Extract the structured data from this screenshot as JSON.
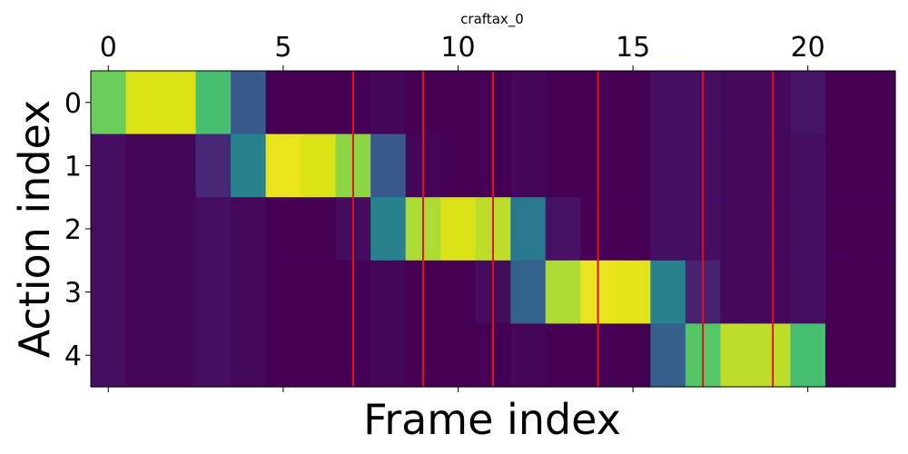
{
  "chart_data": {
    "type": "heatmap",
    "title": "craftax_0",
    "xlabel": "Frame index",
    "ylabel": "Action index",
    "x_ticks": [
      0,
      5,
      10,
      15,
      20
    ],
    "y_ticks": [
      0,
      1,
      2,
      3,
      4
    ],
    "x_range": [
      -0.5,
      22.5
    ],
    "y_range": [
      4.5,
      -0.5
    ],
    "x_tick_position": "top",
    "colormap": "viridis",
    "num_frames": 23,
    "num_actions": 5,
    "values": [
      [
        0.85,
        0.95,
        0.95,
        0.8,
        0.35,
        0.0,
        0.0,
        0.0,
        0.02,
        0.0,
        0.0,
        0.0,
        0.02,
        0.0,
        0.0,
        0.0,
        0.05,
        0.05,
        0.03,
        0.03,
        0.07,
        0.0,
        0.0
      ],
      [
        0.05,
        0.02,
        0.02,
        0.15,
        0.55,
        0.97,
        0.95,
        0.9,
        0.35,
        0.02,
        0.0,
        0.0,
        0.02,
        0.0,
        0.0,
        0.0,
        0.05,
        0.05,
        0.03,
        0.03,
        0.05,
        0.0,
        0.0
      ],
      [
        0.05,
        0.02,
        0.02,
        0.05,
        0.03,
        0.0,
        0.0,
        0.04,
        0.55,
        0.92,
        0.95,
        0.93,
        0.5,
        0.06,
        0.0,
        0.0,
        0.05,
        0.05,
        0.03,
        0.03,
        0.05,
        0.0,
        0.0
      ],
      [
        0.05,
        0.02,
        0.02,
        0.05,
        0.03,
        0.0,
        0.0,
        0.0,
        0.02,
        0.0,
        0.0,
        0.04,
        0.4,
        0.92,
        0.97,
        0.96,
        0.55,
        0.12,
        0.03,
        0.03,
        0.05,
        0.0,
        0.0
      ],
      [
        0.05,
        0.02,
        0.02,
        0.05,
        0.03,
        0.0,
        0.0,
        0.0,
        0.02,
        0.0,
        0.0,
        0.0,
        0.02,
        0.0,
        0.0,
        0.0,
        0.38,
        0.82,
        0.93,
        0.93,
        0.8,
        0.0,
        0.0
      ]
    ],
    "vertical_lines": [
      7,
      9,
      11,
      14,
      17,
      19
    ],
    "vertical_line_color": "#e3101a",
    "grid": false,
    "legend": "none"
  }
}
